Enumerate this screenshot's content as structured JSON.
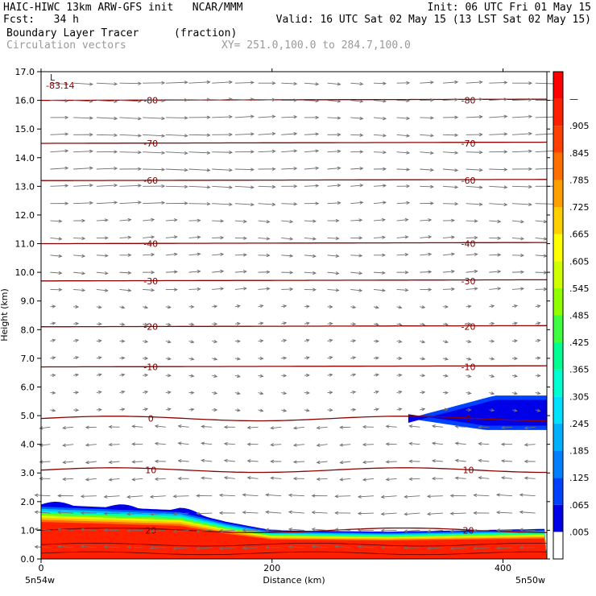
{
  "header": {
    "line1_left": "HAIC-HIWC 13km ARW-GFS init   NCAR/MMM",
    "line1_right": "Init: 06 UTC Fri 01 May 15",
    "line2_left": "Fcst:   34 h",
    "line2_right": "Valid: 16 UTC Sat 02 May 15 (13 LST Sat 02 May 15)",
    "field_name": "Boundary Layer Tracer",
    "field_units": "(fraction)",
    "vector_label": "Circulation vectors",
    "xy_label": "XY= 251.0,100.0 to 284.7,100.0"
  },
  "chart_data": {
    "type": "heatmap",
    "ylabel": "Height (km)",
    "xlabel": "Distance (km)",
    "x_start_label": "5n54w",
    "x_end_label": "5n50w",
    "xlim": [
      0,
      438
    ],
    "ylim": [
      0,
      17
    ],
    "x_ticks": [
      0,
      200,
      400
    ],
    "y_ticks": [
      "0.0",
      "1.0",
      "2.0",
      "3.0",
      "4.0",
      "5.0",
      "6.0",
      "7.0",
      "8.0",
      "9.0",
      "10.0",
      "11.0",
      "12.0",
      "13.0",
      "14.0",
      "15.0",
      "16.0",
      "17.0"
    ],
    "colorbar": {
      "labels": [
        ".005",
        ".065",
        ".125",
        ".185",
        ".245",
        ".305",
        ".365",
        ".425",
        ".485",
        ".545",
        ".605",
        ".665",
        ".725",
        ".785",
        ".845",
        ".905",
        "—"
      ],
      "colors": [
        "#ffffff",
        "#0000e8",
        "#0040ff",
        "#0080ff",
        "#00b0ff",
        "#00e0ff",
        "#00ffd0",
        "#00ff90",
        "#40ff40",
        "#90ff00",
        "#d0ff00",
        "#ffff00",
        "#ffd000",
        "#ffa000",
        "#ff7000",
        "#ff4000",
        "#ff2000",
        "#ff0000"
      ]
    },
    "temperature_contours": [
      {
        "label": "-80",
        "height_km": 16.0
      },
      {
        "label": "-70",
        "height_km": 14.5
      },
      {
        "label": "-60",
        "height_km": 13.2
      },
      {
        "label": "-40",
        "height_km": 11.0
      },
      {
        "label": "-30",
        "height_km": 9.7
      },
      {
        "label": "-20",
        "height_km": 8.1
      },
      {
        "label": "-10",
        "height_km": 6.7
      },
      {
        "label": "0",
        "height_km": 4.9
      },
      {
        "label": "10",
        "height_km": 3.1
      },
      {
        "label": "20",
        "height_km": 1.0
      }
    ],
    "min_annotation": {
      "label": "L",
      "value": "-83.14"
    },
    "tracer_surface_layer": [
      {
        "x": 0,
        "top_km": 1.9
      },
      {
        "x": 60,
        "top_km": 1.8
      },
      {
        "x": 120,
        "top_km": 1.7
      },
      {
        "x": 160,
        "top_km": 1.3
      },
      {
        "x": 200,
        "top_km": 1.0
      },
      {
        "x": 300,
        "top_km": 0.95
      },
      {
        "x": 438,
        "top_km": 1.05
      }
    ],
    "tracer_aloft_patch": {
      "x_start": 318,
      "x_end": 438,
      "bottom_km": 4.5,
      "top_km": 5.7
    }
  }
}
